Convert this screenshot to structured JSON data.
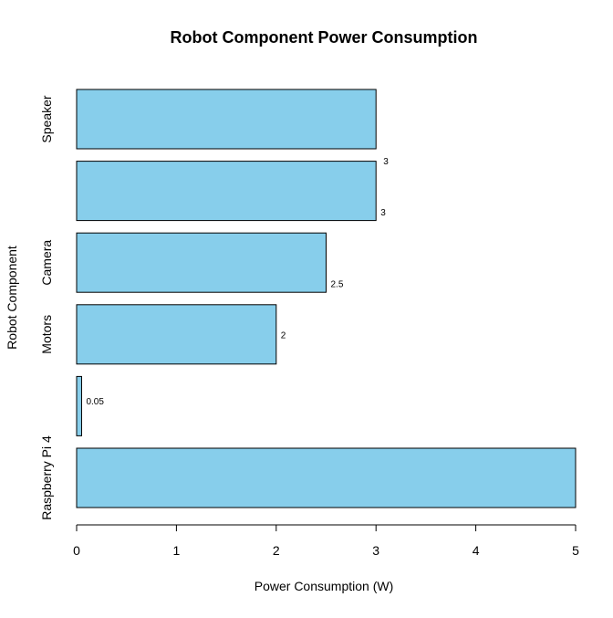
{
  "chart_data": {
    "type": "bar",
    "orientation": "horizontal",
    "title": "Robot Component Power Consumption",
    "xlabel": "Power Consumption (W)",
    "ylabel": "Robot Component",
    "xlim": [
      0,
      5
    ],
    "x_ticks": [
      "0",
      "1",
      "2",
      "3",
      "4",
      "5"
    ],
    "categories": [
      "Raspberry Pi 4",
      "",
      "Motors",
      "Camera",
      "",
      "Speaker"
    ],
    "values": [
      5,
      0.05,
      2,
      2.5,
      3,
      3
    ],
    "data_labels": [
      "",
      "0.05",
      "2",
      "2.5",
      "3",
      ""
    ],
    "extra_labels": [
      "3"
    ],
    "bar_color": "#87CEEB",
    "border_color": "#000000",
    "grid": false,
    "legend": "none"
  }
}
